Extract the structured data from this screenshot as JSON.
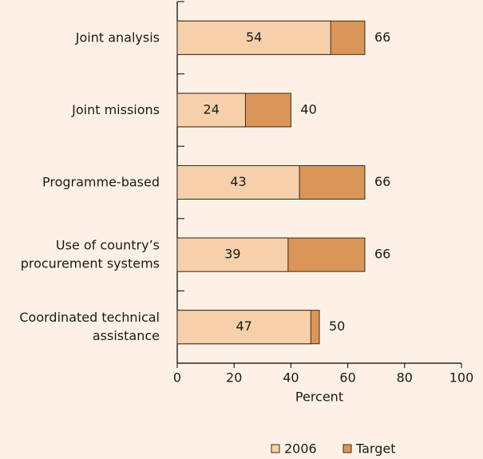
{
  "chart_data": {
    "type": "bar",
    "orientation": "horizontal",
    "overlay": true,
    "categories": [
      "Joint analysis",
      "Joint missions",
      "Programme-based",
      "Use of country’s\nprocurement systems",
      "Coordinated technical\nassistance"
    ],
    "series": [
      {
        "name": "2006",
        "color": "#f6d0ab",
        "values": [
          54,
          24,
          43,
          39,
          47
        ]
      },
      {
        "name": "Target",
        "color": "#da9558",
        "values": [
          66,
          40,
          66,
          66,
          50
        ]
      }
    ],
    "xlabel": "Percent",
    "xlim": [
      0,
      100
    ],
    "xticks": [
      0,
      20,
      40,
      60,
      80,
      100
    ],
    "legend": "bottom"
  }
}
